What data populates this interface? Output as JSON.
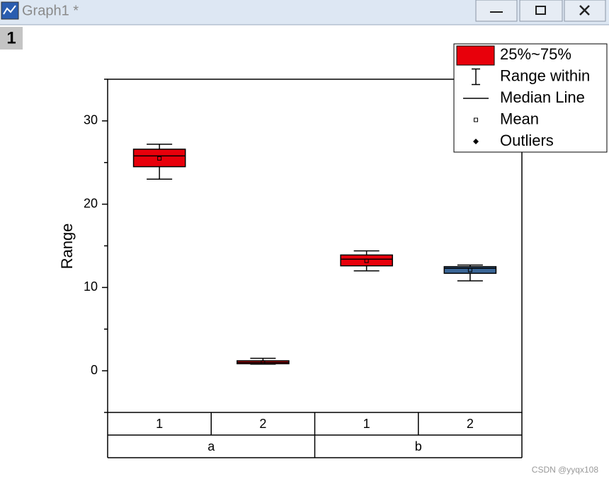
{
  "window": {
    "title": "Graph1 *",
    "layer": "1"
  },
  "chart_data": {
    "type": "box",
    "y_label": "Range",
    "groups": [
      {
        "label": "a",
        "categories": [
          "1",
          "2"
        ]
      },
      {
        "label": "b",
        "categories": [
          "1",
          "2"
        ]
      }
    ],
    "boxes": [
      {
        "whisker_low": 23.0,
        "q1": 24.5,
        "median": 25.8,
        "q3": 26.6,
        "whisker_high": 27.2,
        "mean": 25.5,
        "color": "#e8000b"
      },
      {
        "whisker_low": 0.8,
        "q1": 0.85,
        "median": 1.0,
        "q3": 1.2,
        "whisker_high": 1.5,
        "mean": 1.0,
        "color": "#e8000b"
      },
      {
        "whisker_low": 12.0,
        "q1": 12.6,
        "median": 13.4,
        "q3": 13.9,
        "whisker_high": 14.4,
        "mean": 13.2,
        "color": "#e8000b"
      },
      {
        "whisker_low": 10.8,
        "q1": 11.7,
        "median": 12.3,
        "q3": 12.5,
        "whisker_high": 12.7,
        "mean": 12.1,
        "color": "#3b6797"
      }
    ],
    "ylim": [
      -5,
      35
    ],
    "yticks": [
      0,
      10,
      20,
      30
    ],
    "minor_yticks": [
      -5,
      5,
      15,
      25,
      35
    ],
    "legend": {
      "position": "top-right",
      "entries": [
        "25%~75%",
        "Range within",
        "Median Line",
        "Mean",
        "Outliers"
      ]
    }
  },
  "watermark": "CSDN @yyqx108"
}
